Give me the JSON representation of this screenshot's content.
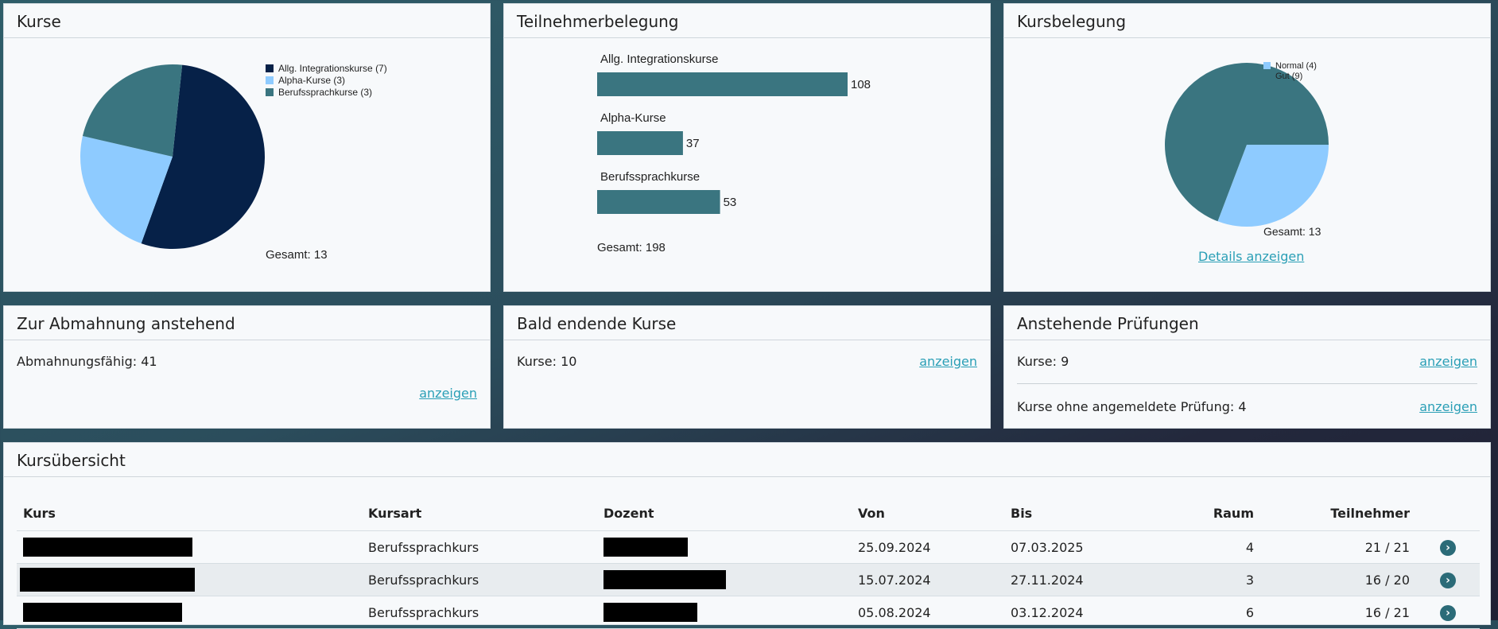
{
  "panels": {
    "kurse": {
      "title": "Kurse",
      "legend": [
        "Allg. Integrationskurse (7)",
        "Alpha-Kurse (3)",
        "Berufssprachkurse (3)"
      ],
      "total": "Gesamt: 13"
    },
    "teilnehmer": {
      "title": "Teilnehmerbelegung",
      "total": "Gesamt: 198"
    },
    "kursbelegung": {
      "title": "Kursbelegung",
      "legend": [
        "Normal (4)",
        "Gut (9)"
      ],
      "total": "Gesamt: 13",
      "link": "Details anzeigen"
    },
    "abmahnung": {
      "title": "Zur Abmahnung anstehend",
      "text": "Abmahnungsfähig: 41",
      "link": "anzeigen"
    },
    "bald": {
      "title": "Bald endende Kurse",
      "text": "Kurse: 10",
      "link": "anzeigen"
    },
    "pruefungen": {
      "title": "Anstehende Prüfungen",
      "row1_text": "Kurse: 9",
      "row1_link": "anzeigen",
      "row2_text": "Kurse ohne angemeldete Prüfung: 4",
      "row2_link": "anzeigen"
    },
    "uebersicht": {
      "title": "Kursübersicht",
      "headers": [
        "Kurs",
        "Kursart",
        "Dozent",
        "Von",
        "Bis",
        "Raum",
        "Teilnehmer"
      ],
      "rows": [
        {
          "kursart": "Berufssprachkurs",
          "von": "25.09.2024",
          "bis": "07.03.2025",
          "raum": "4",
          "teilnehmer": "21 / 21"
        },
        {
          "kursart": "Berufssprachkurs",
          "von": "15.07.2024",
          "bis": "27.11.2024",
          "raum": "3",
          "teilnehmer": "16 / 20"
        },
        {
          "kursart": "Berufssprachkurs",
          "von": "05.08.2024",
          "bis": "03.12.2024",
          "raum": "6",
          "teilnehmer": "16 / 21"
        }
      ]
    }
  },
  "colors": {
    "navy": "#062148",
    "lightblue": "#8ecbff",
    "teal": "#3a7580",
    "link": "#2a9fb6"
  },
  "icons": {
    "row_action": "chevron-right-circle-icon"
  },
  "chart_data": [
    {
      "type": "pie",
      "labels": [
        "Allg. Integrationskurse (7)",
        "Alpha-Kurse (3)",
        "Berufssprachkurse (3)"
      ],
      "values": [
        7,
        3,
        3
      ],
      "colors": [
        "#062148",
        "#8ecbff",
        "#3a7580"
      ],
      "legend": "top-right"
    },
    {
      "type": "bar",
      "categories": [
        "Allg. Integrationskurse",
        "Alpha-Kurse",
        "Berufssprachkurse"
      ],
      "values": [
        108,
        37,
        53
      ],
      "color": "#3a7580"
    },
    {
      "type": "pie",
      "labels": [
        "Normal (4)",
        "Gut (9)"
      ],
      "values": [
        4,
        9
      ],
      "colors": [
        "#8ecbff",
        "#3a7580"
      ],
      "legend": "top-right"
    }
  ]
}
